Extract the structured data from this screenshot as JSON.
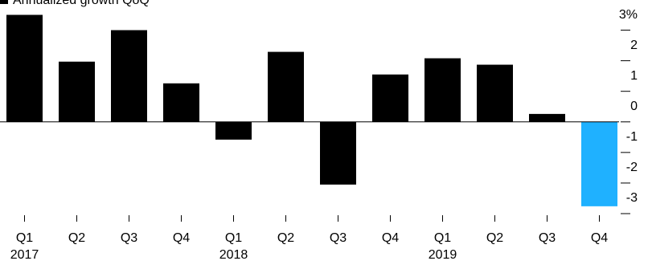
{
  "chart_data": {
    "type": "bar",
    "legend_label": "Annualized growth QoQ",
    "categories": [
      "Q1",
      "Q2",
      "Q3",
      "Q4",
      "Q1",
      "Q2",
      "Q3",
      "Q4",
      "Q1",
      "Q2",
      "Q3",
      "Q4"
    ],
    "year_labels": [
      "2017",
      null,
      null,
      null,
      "2018",
      null,
      null,
      null,
      "2019",
      null,
      null,
      null
    ],
    "values": [
      3.5,
      1.97,
      3.0,
      1.26,
      -0.58,
      2.29,
      -2.05,
      1.55,
      2.08,
      1.87,
      0.26,
      -2.76
    ],
    "colors": [
      "#000000",
      "#000000",
      "#000000",
      "#000000",
      "#000000",
      "#000000",
      "#000000",
      "#000000",
      "#000000",
      "#000000",
      "#000000",
      "#1fb1ff"
    ],
    "ylim": [
      -3,
      3.5
    ],
    "yticks": [
      -3,
      -2,
      -1,
      0,
      1,
      2,
      {
        "value": 3,
        "label": "3%"
      }
    ],
    "y_axis_side": "right"
  }
}
